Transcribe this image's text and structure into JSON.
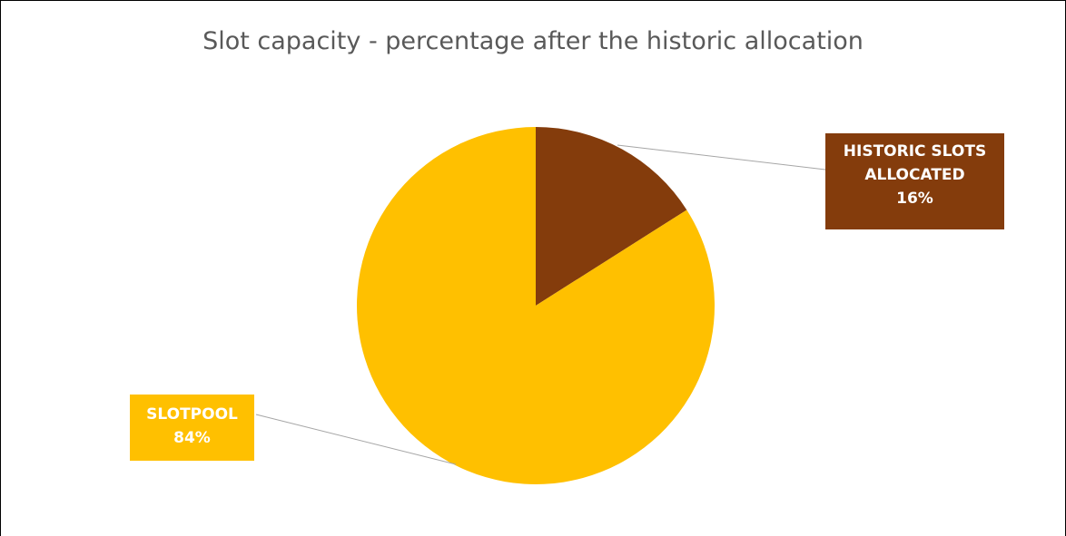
{
  "chart_data": {
    "type": "pie",
    "title": "Slot capacity - percentage after the historic allocation",
    "slices": [
      {
        "name": "HISTORIC SLOTS ALLOCATED",
        "percent_label": "16%",
        "value": 16,
        "color": "#843c0c"
      },
      {
        "name": "SLOTPOOL",
        "percent_label": "84%",
        "value": 84,
        "color": "#ffc000"
      }
    ],
    "start_angle_deg": 0,
    "direction": "clockwise",
    "leader_line_color": "#a6a6a6",
    "background": "#ffffff"
  }
}
